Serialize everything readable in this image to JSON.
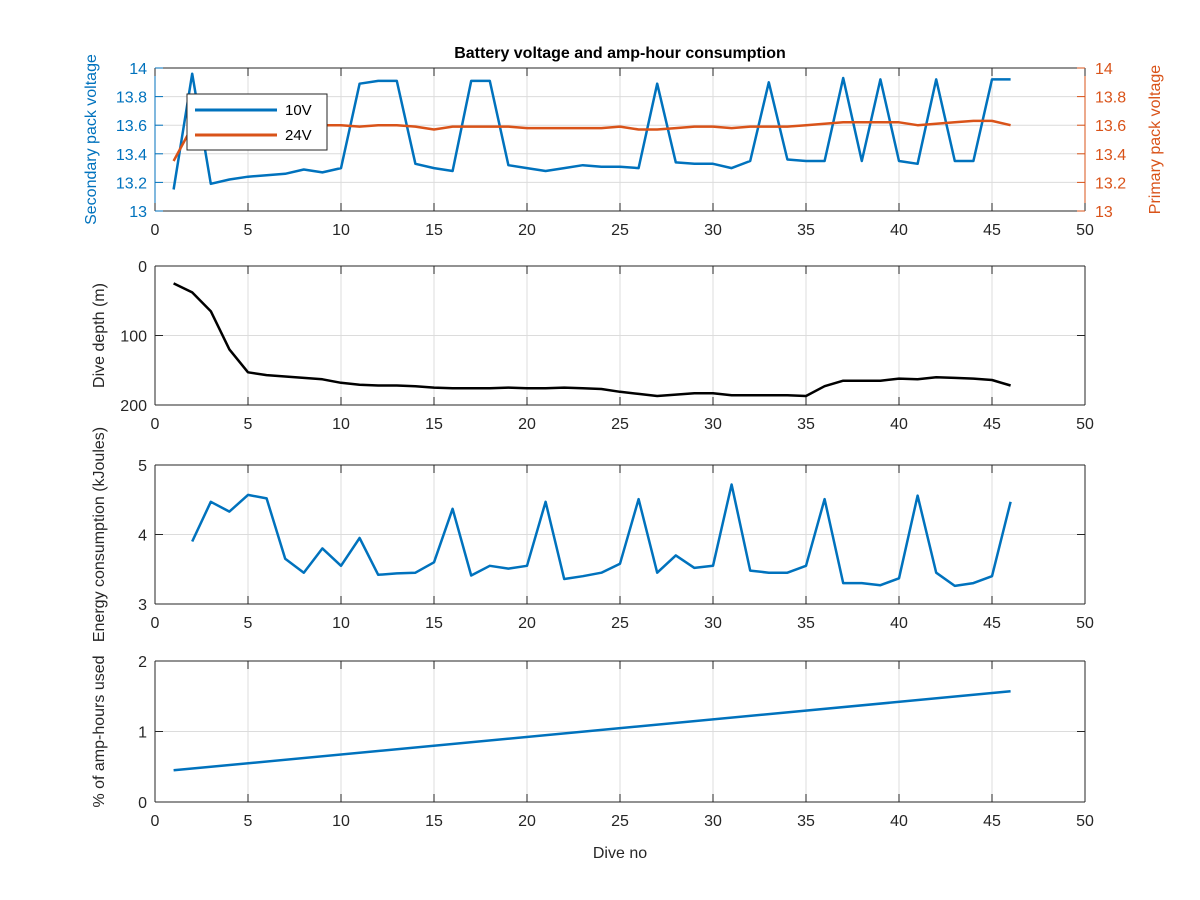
{
  "figure": {
    "title": "Battery voltage and amp-hour consumption",
    "xlabel": "Dive no"
  },
  "colors": {
    "series_blue": "#0072BD",
    "series_orange": "#D95319",
    "depth_line": "#000000",
    "axis": "#262626",
    "grid": "#DCDCDC"
  },
  "chart_data": [
    {
      "type": "line",
      "title": "Battery voltage and amp-hour consumption",
      "xlabel": "",
      "ylabel": "Secondary pack voltage",
      "ylabel_right": "Primary pack voltage",
      "xlim": [
        0,
        50
      ],
      "ylim": [
        13,
        14
      ],
      "ylim_right": [
        13,
        14
      ],
      "xticks": [
        0,
        5,
        10,
        15,
        20,
        25,
        30,
        35,
        40,
        45,
        50
      ],
      "yticks": [
        13,
        13.2,
        13.4,
        13.6,
        13.8,
        14
      ],
      "yticks_right": [
        13,
        13.2,
        13.4,
        13.6,
        13.8,
        14
      ],
      "grid": true,
      "legend_position": "top-left",
      "x": [
        1,
        2,
        3,
        4,
        5,
        6,
        7,
        8,
        9,
        10,
        11,
        12,
        13,
        14,
        15,
        16,
        17,
        18,
        19,
        20,
        21,
        22,
        23,
        24,
        25,
        26,
        27,
        28,
        29,
        30,
        31,
        32,
        33,
        34,
        35,
        36,
        37,
        38,
        39,
        40,
        41,
        42,
        43,
        44,
        45,
        46
      ],
      "series": [
        {
          "name": "10V",
          "axis": "left",
          "values": [
            13.15,
            13.96,
            13.19,
            13.22,
            13.24,
            13.25,
            13.26,
            13.29,
            13.27,
            13.3,
            13.89,
            13.91,
            13.91,
            13.33,
            13.3,
            13.28,
            13.91,
            13.91,
            13.32,
            13.3,
            13.28,
            13.3,
            13.32,
            13.31,
            13.31,
            13.3,
            13.89,
            13.34,
            13.33,
            13.33,
            13.3,
            13.35,
            13.9,
            13.36,
            13.35,
            13.35,
            13.93,
            13.35,
            13.92,
            13.35,
            13.33,
            13.92,
            13.35,
            13.35,
            13.92,
            13.92
          ]
        },
        {
          "name": "24V",
          "axis": "right",
          "values": [
            13.35,
            13.59,
            13.56,
            13.58,
            13.59,
            13.59,
            13.59,
            13.6,
            13.6,
            13.6,
            13.59,
            13.6,
            13.6,
            13.59,
            13.57,
            13.59,
            13.59,
            13.59,
            13.59,
            13.58,
            13.58,
            13.58,
            13.58,
            13.58,
            13.59,
            13.57,
            13.57,
            13.58,
            13.59,
            13.59,
            13.58,
            13.59,
            13.59,
            13.59,
            13.6,
            13.61,
            13.62,
            13.62,
            13.62,
            13.62,
            13.6,
            13.61,
            13.62,
            13.63,
            13.63,
            13.6
          ]
        }
      ]
    },
    {
      "type": "line",
      "xlabel": "",
      "ylabel": "Dive depth (m)",
      "xlim": [
        0,
        50
      ],
      "ylim": [
        0,
        200
      ],
      "y_reversed": true,
      "xticks": [
        0,
        5,
        10,
        15,
        20,
        25,
        30,
        35,
        40,
        45,
        50
      ],
      "yticks": [
        0,
        100,
        200
      ],
      "grid": true,
      "x": [
        1,
        2,
        3,
        4,
        5,
        6,
        7,
        8,
        9,
        10,
        11,
        12,
        13,
        14,
        15,
        16,
        17,
        18,
        19,
        20,
        21,
        22,
        23,
        24,
        25,
        26,
        27,
        28,
        29,
        30,
        31,
        32,
        33,
        34,
        35,
        36,
        37,
        38,
        39,
        40,
        41,
        42,
        43,
        44,
        45,
        46
      ],
      "series": [
        {
          "values": [
            25,
            38,
            65,
            120,
            153,
            157,
            159,
            161,
            163,
            168,
            171,
            172,
            172,
            173,
            175,
            176,
            176,
            176,
            175,
            176,
            176,
            175,
            176,
            177,
            181,
            184,
            187,
            185,
            183,
            183,
            186,
            186,
            186,
            186,
            187,
            173,
            165,
            165,
            165,
            162,
            163,
            160,
            161,
            162,
            164,
            172
          ]
        }
      ]
    },
    {
      "type": "line",
      "xlabel": "",
      "ylabel": "Energy consumption (kJoules)",
      "xlim": [
        0,
        50
      ],
      "ylim": [
        3,
        5
      ],
      "xticks": [
        0,
        5,
        10,
        15,
        20,
        25,
        30,
        35,
        40,
        45,
        50
      ],
      "yticks": [
        3,
        4,
        5
      ],
      "grid": true,
      "x": [
        2,
        3,
        4,
        5,
        6,
        7,
        8,
        9,
        10,
        11,
        12,
        13,
        14,
        15,
        16,
        17,
        18,
        19,
        20,
        21,
        22,
        23,
        24,
        25,
        26,
        27,
        28,
        29,
        30,
        31,
        32,
        33,
        34,
        35,
        36,
        37,
        38,
        39,
        40,
        41,
        42,
        43,
        44,
        45,
        46
      ],
      "series": [
        {
          "values": [
            3.9,
            4.47,
            4.33,
            4.57,
            4.52,
            3.65,
            3.45,
            3.8,
            3.55,
            3.95,
            3.42,
            3.44,
            3.45,
            3.6,
            4.37,
            3.41,
            3.55,
            3.51,
            3.55,
            4.47,
            3.36,
            3.4,
            3.45,
            3.58,
            4.51,
            3.45,
            3.7,
            3.52,
            3.55,
            4.72,
            3.48,
            3.45,
            3.45,
            3.55,
            4.51,
            3.3,
            3.3,
            3.27,
            3.37,
            4.56,
            3.45,
            3.26,
            3.3,
            3.4,
            4.47
          ]
        }
      ]
    },
    {
      "type": "line",
      "xlabel": "Dive no",
      "ylabel": "% of amp-hours used",
      "xlim": [
        0,
        50
      ],
      "ylim": [
        0,
        2
      ],
      "xticks": [
        0,
        5,
        10,
        15,
        20,
        25,
        30,
        35,
        40,
        45,
        50
      ],
      "yticks": [
        0,
        1,
        2
      ],
      "grid": true,
      "x": [
        1,
        46
      ],
      "series": [
        {
          "values": [
            0.45,
            1.57
          ]
        }
      ]
    }
  ]
}
